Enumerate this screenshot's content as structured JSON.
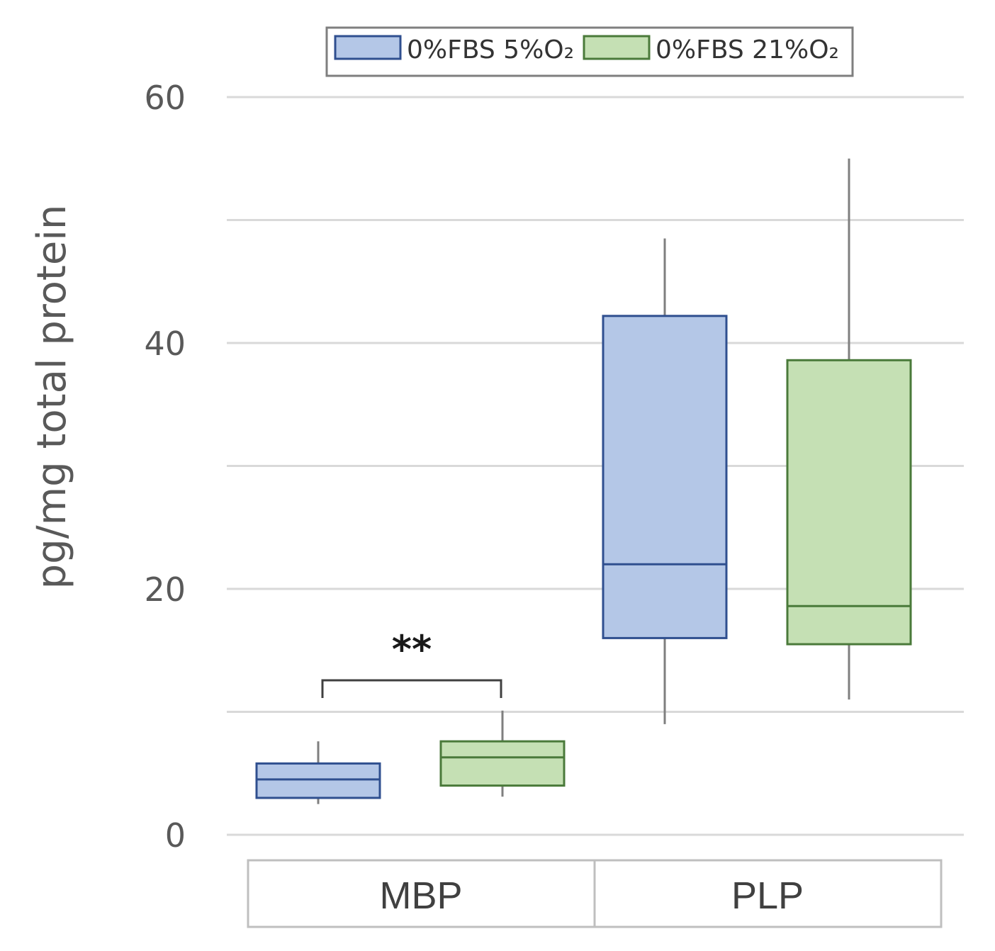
{
  "chart_data": {
    "type": "box",
    "ylabel": "pg/mg total protein",
    "ylim": [
      0,
      60
    ],
    "yticks": [
      "0",
      "20",
      "40",
      "60"
    ],
    "grid": true,
    "legend_position": "top-center",
    "categories": [
      "MBP",
      "PLP"
    ],
    "series": [
      {
        "name": "0%FBS 5%O₂",
        "color_fill": "#b4c7e7",
        "color_stroke": "#2f4f8f",
        "boxes": [
          {
            "category": "MBP",
            "min": 2.5,
            "q1": 3.0,
            "median": 4.5,
            "q3": 5.8,
            "max": 7.6
          },
          {
            "category": "PLP",
            "min": 9.0,
            "q1": 16.0,
            "median": 22.0,
            "q3": 42.2,
            "max": 48.5
          }
        ]
      },
      {
        "name": "0%FBS 21%O₂",
        "color_fill": "#c5e0b4",
        "color_stroke": "#4a7a3a",
        "boxes": [
          {
            "category": "MBP",
            "min": 3.1,
            "q1": 4.0,
            "median": 6.3,
            "q3": 7.6,
            "max": 10.1
          },
          {
            "category": "PLP",
            "min": 11.0,
            "q1": 15.5,
            "median": 18.6,
            "q3": 38.6,
            "max": 55.0
          }
        ]
      }
    ],
    "annotations": [
      {
        "text": "**",
        "between": [
          "MBP 0%FBS 5%O₂",
          "MBP 0%FBS 21%O₂"
        ]
      }
    ]
  }
}
